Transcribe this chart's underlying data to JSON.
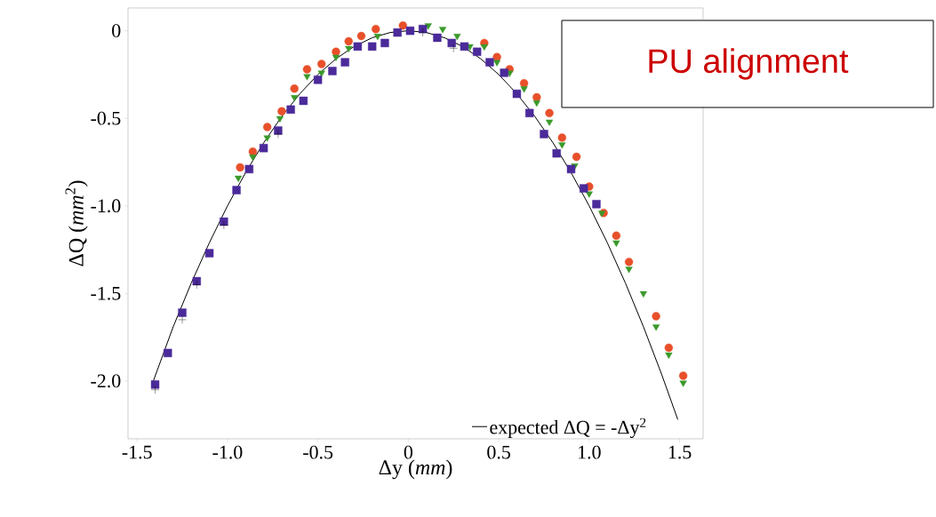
{
  "chart_data": {
    "type": "scatter",
    "xlabel": "Δy (*mm*)",
    "ylabel": "ΔQ (*mm*$^{2}$)",
    "annotations": [
      "PU alignment"
    ],
    "xlim": [
      -1.55,
      1.63
    ],
    "ylim": [
      -2.33,
      0.13
    ],
    "xticks": [
      {
        "value": -1.5,
        "label": "-1.5"
      },
      {
        "value": -1.0,
        "label": "-1.0"
      },
      {
        "value": -0.5,
        "label": "-0.5"
      },
      {
        "value": 0,
        "label": "0"
      },
      {
        "value": 0.5,
        "label": "0.5"
      },
      {
        "value": 1.0,
        "label": "1.0"
      },
      {
        "value": 1.5,
        "label": "1.5"
      }
    ],
    "yticks": [
      {
        "value": 0,
        "label": "0"
      },
      {
        "value": -0.5,
        "label": "-0.5"
      },
      {
        "value": -1.0,
        "label": "-1.0"
      },
      {
        "value": -1.5,
        "label": "-1.5"
      },
      {
        "value": -2.0,
        "label": "-2.0"
      }
    ],
    "legend": "bottom right",
    "series": [
      {
        "color": "#e8502a",
        "marker": "circle",
        "x": [
          -0.93,
          -0.86,
          -0.78,
          -0.7,
          -0.63,
          -0.56,
          -0.48,
          -0.4,
          -0.33,
          -0.26,
          -0.18,
          -0.03,
          0.42,
          0.49,
          0.56,
          0.64,
          0.71,
          0.78,
          0.85,
          0.93,
          1.0,
          1.08,
          1.15,
          1.22,
          1.37,
          1.44,
          1.52
        ],
        "values": [
          -0.78,
          -0.69,
          -0.55,
          -0.46,
          -0.33,
          -0.22,
          -0.19,
          -0.12,
          -0.06,
          -0.03,
          0.01,
          0.03,
          -0.07,
          -0.15,
          -0.22,
          -0.3,
          -0.38,
          -0.47,
          -0.61,
          -0.72,
          -0.89,
          -1.04,
          -1.17,
          -1.32,
          -1.63,
          -1.81,
          -1.97
        ]
      },
      {
        "color": "#3a9a2a",
        "marker": "triangle",
        "x": [
          -0.94,
          -0.86,
          -0.78,
          -0.71,
          -0.63,
          -0.56,
          -0.48,
          -0.4,
          -0.33,
          -0.17,
          0.11,
          0.19,
          0.27,
          0.34,
          0.42,
          0.49,
          0.56,
          0.64,
          0.71,
          0.78,
          0.85,
          0.92,
          1.0,
          1.07,
          1.15,
          1.22,
          1.3,
          1.37,
          1.44,
          1.52
        ],
        "values": [
          -0.84,
          -0.72,
          -0.61,
          -0.5,
          -0.38,
          -0.26,
          -0.24,
          -0.15,
          -0.1,
          -0.03,
          0.03,
          0.01,
          -0.03,
          -0.09,
          -0.09,
          -0.18,
          -0.24,
          -0.33,
          -0.41,
          -0.52,
          -0.65,
          -0.77,
          -0.93,
          -1.04,
          -1.21,
          -1.36,
          -1.5,
          -1.69,
          -1.85,
          -2.01
        ]
      },
      {
        "color": "#4b2a9a",
        "marker": "square",
        "x": [
          -1.4,
          -1.33,
          -1.25,
          -1.17,
          -1.1,
          -1.02,
          -0.95,
          -0.88,
          -0.8,
          -0.72,
          -0.65,
          -0.58,
          -0.5,
          -0.42,
          -0.35,
          -0.28,
          -0.2,
          -0.13,
          -0.06,
          0.01,
          0.08,
          0.16,
          0.24,
          0.31,
          0.38,
          0.45,
          0.53,
          0.6,
          0.67,
          0.75,
          0.82,
          0.9,
          0.97,
          1.04
        ],
        "values": [
          -2.02,
          -1.84,
          -1.61,
          -1.43,
          -1.27,
          -1.09,
          -0.91,
          -0.79,
          -0.67,
          -0.57,
          -0.45,
          -0.4,
          -0.28,
          -0.23,
          -0.18,
          -0.09,
          -0.09,
          -0.07,
          -0.01,
          0.0,
          0.01,
          -0.04,
          -0.07,
          -0.09,
          -0.12,
          -0.18,
          -0.24,
          -0.36,
          -0.47,
          -0.59,
          -0.7,
          -0.79,
          -0.9,
          -0.99
        ]
      },
      {
        "color": "#000000",
        "marker": "cross",
        "x": [
          -1.4,
          -1.25,
          -1.17,
          -1.02,
          -0.72,
          0.08,
          0.25
        ],
        "values": [
          -2.05,
          -1.65,
          -1.45,
          -1.11,
          -0.59,
          -0.01,
          -0.1
        ]
      },
      {
        "type": "line",
        "name": "expected ΔQ = -Δy$^{2}$",
        "color": "#000000",
        "marker": "none",
        "line_style": "solid",
        "x": [
          -1.41,
          -1.3,
          -1.2,
          -1.1,
          -1.0,
          -0.9,
          -0.8,
          -0.7,
          -0.6,
          -0.5,
          -0.4,
          -0.3,
          -0.2,
          -0.1,
          0,
          0.1,
          0.2,
          0.3,
          0.4,
          0.5,
          0.6,
          0.7,
          0.8,
          0.9,
          1.0,
          1.1,
          1.2,
          1.3,
          1.4,
          1.49
        ],
        "values": [
          -2.0,
          -1.69,
          -1.44,
          -1.21,
          -1.0,
          -0.81,
          -0.64,
          -0.49,
          -0.36,
          -0.25,
          -0.16,
          -0.09,
          -0.04,
          -0.01,
          0,
          -0.01,
          -0.04,
          -0.09,
          -0.16,
          -0.25,
          -0.36,
          -0.49,
          -0.64,
          -0.81,
          -1.0,
          -1.21,
          -1.44,
          -1.69,
          -1.96,
          -2.22
        ]
      }
    ]
  }
}
